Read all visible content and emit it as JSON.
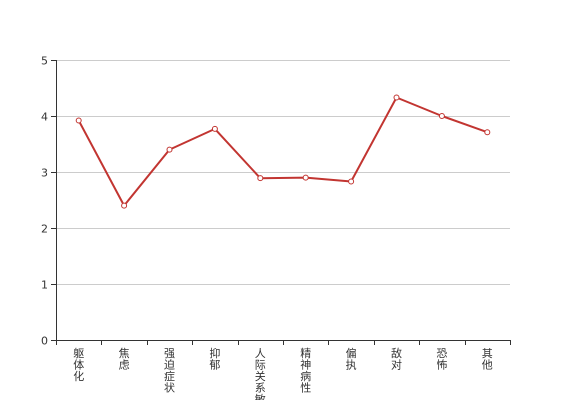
{
  "chart_data": {
    "type": "line",
    "title": "",
    "xlabel": "",
    "ylabel": "",
    "categories": [
      "躯体化",
      "焦虑",
      "强迫症状",
      "抑郁",
      "人际关系敏感",
      "精神病性",
      "偏执",
      "敌对",
      "恐怖",
      "其他"
    ],
    "series": [
      {
        "values": [
          3.92,
          2.4,
          3.4,
          3.77,
          2.89,
          2.9,
          2.83,
          4.33,
          4.0,
          3.71
        ]
      }
    ],
    "ylim": [
      0,
      5
    ],
    "yticks": [
      0,
      1,
      2,
      3,
      4,
      5
    ],
    "grid": true,
    "legend": "none",
    "colors": {
      "line": "#c23531",
      "grid": "#cccccc",
      "axis": "#333333",
      "marker_fill": "#ffffff"
    }
  }
}
